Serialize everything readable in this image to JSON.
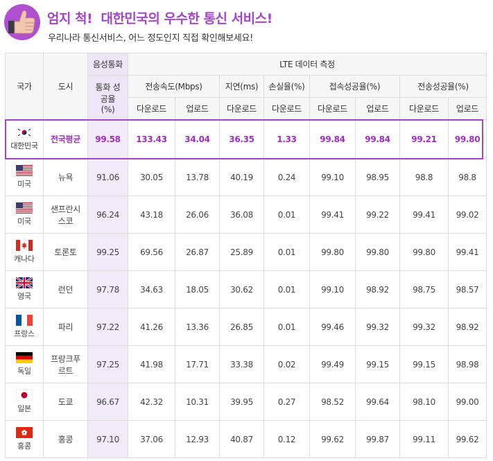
{
  "header": {
    "title_part1": "엄지 척!",
    "title_part2": "대한민국의",
    "title_part3": "우수한",
    "title_part4": "통신 서비스!",
    "subtitle": "우리나라 통신서비스, 어느 정도인지 직접 확인해보세요!"
  },
  "colors": {
    "accent": "#a544c9",
    "voice_bg": "#f3ebfa"
  },
  "table": {
    "headers": {
      "country": "국가",
      "city": "도시",
      "voice_group": "음성통화",
      "lte_group": "LTE 데이터 측정",
      "voice_success": "통화 성공율 (%)",
      "speed": "전송속도(Mbps)",
      "latency": "지연(ms)",
      "loss": "손실율(%)",
      "connect": "접속성공율(%)",
      "transfer": "전송성공율(%)",
      "download": "다운로드",
      "upload": "업로드"
    },
    "rows": [
      {
        "flag": "korea-flag-icon",
        "country": "대한민국",
        "city": "전국평균",
        "voice": "99.58",
        "dl_speed": "133.43",
        "ul_speed": "34.04",
        "latency": "36.35",
        "loss": "1.33",
        "conn_dl": "99.84",
        "conn_ul": "99.84",
        "trans_dl": "99.21",
        "trans_ul": "99.80"
      },
      {
        "flag": "usa-flag-icon",
        "country": "미국",
        "city": "뉴욕",
        "voice": "91.06",
        "dl_speed": "30.05",
        "ul_speed": "13.78",
        "latency": "40.19",
        "loss": "0.24",
        "conn_dl": "99.10",
        "conn_ul": "98.95",
        "trans_dl": "98.8",
        "trans_ul": "98.8"
      },
      {
        "flag": "usa-flag-icon",
        "country": "미국",
        "city": "샌프란시스코",
        "voice": "96.24",
        "dl_speed": "43.18",
        "ul_speed": "26.06",
        "latency": "36.08",
        "loss": "0.01",
        "conn_dl": "99.41",
        "conn_ul": "99.22",
        "trans_dl": "99.41",
        "trans_ul": "99.02"
      },
      {
        "flag": "canada-flag-icon",
        "country": "캐나다",
        "city": "토론토",
        "voice": "99.25",
        "dl_speed": "69.56",
        "ul_speed": "26.87",
        "latency": "25.89",
        "loss": "0.01",
        "conn_dl": "99.80",
        "conn_ul": "99.80",
        "trans_dl": "99.80",
        "trans_ul": "99.41"
      },
      {
        "flag": "uk-flag-icon",
        "country": "영국",
        "city": "런던",
        "voice": "97.78",
        "dl_speed": "34.63",
        "ul_speed": "18.05",
        "latency": "30.62",
        "loss": "0.01",
        "conn_dl": "99.10",
        "conn_ul": "98.92",
        "trans_dl": "98.75",
        "trans_ul": "98.57"
      },
      {
        "flag": "france-flag-icon",
        "country": "프랑스",
        "city": "파리",
        "voice": "97.22",
        "dl_speed": "41.26",
        "ul_speed": "13.36",
        "latency": "26.85",
        "loss": "0.01",
        "conn_dl": "99.46",
        "conn_ul": "99.32",
        "trans_dl": "99.32",
        "trans_ul": "98.92"
      },
      {
        "flag": "germany-flag-icon",
        "country": "독일",
        "city": "프랑크푸르트",
        "voice": "97.25",
        "dl_speed": "41.98",
        "ul_speed": "17.71",
        "latency": "33.38",
        "loss": "0.02",
        "conn_dl": "99.49",
        "conn_ul": "99.15",
        "trans_dl": "99.15",
        "trans_ul": "98.98"
      },
      {
        "flag": "japan-flag-icon",
        "country": "일본",
        "city": "도쿄",
        "voice": "96.67",
        "dl_speed": "42.32",
        "ul_speed": "10.31",
        "latency": "39.95",
        "loss": "0.27",
        "conn_dl": "98.52",
        "conn_ul": "99.64",
        "trans_dl": "98.10",
        "trans_ul": "99.00"
      },
      {
        "flag": "hongkong-flag-icon",
        "country": "홍콩",
        "city": "홍콩",
        "voice": "97.10",
        "dl_speed": "37.06",
        "ul_speed": "12.93",
        "latency": "40.87",
        "loss": "0.12",
        "conn_dl": "99.62",
        "conn_ul": "99.87",
        "trans_dl": "99.11",
        "trans_ul": "99.62"
      }
    ]
  }
}
